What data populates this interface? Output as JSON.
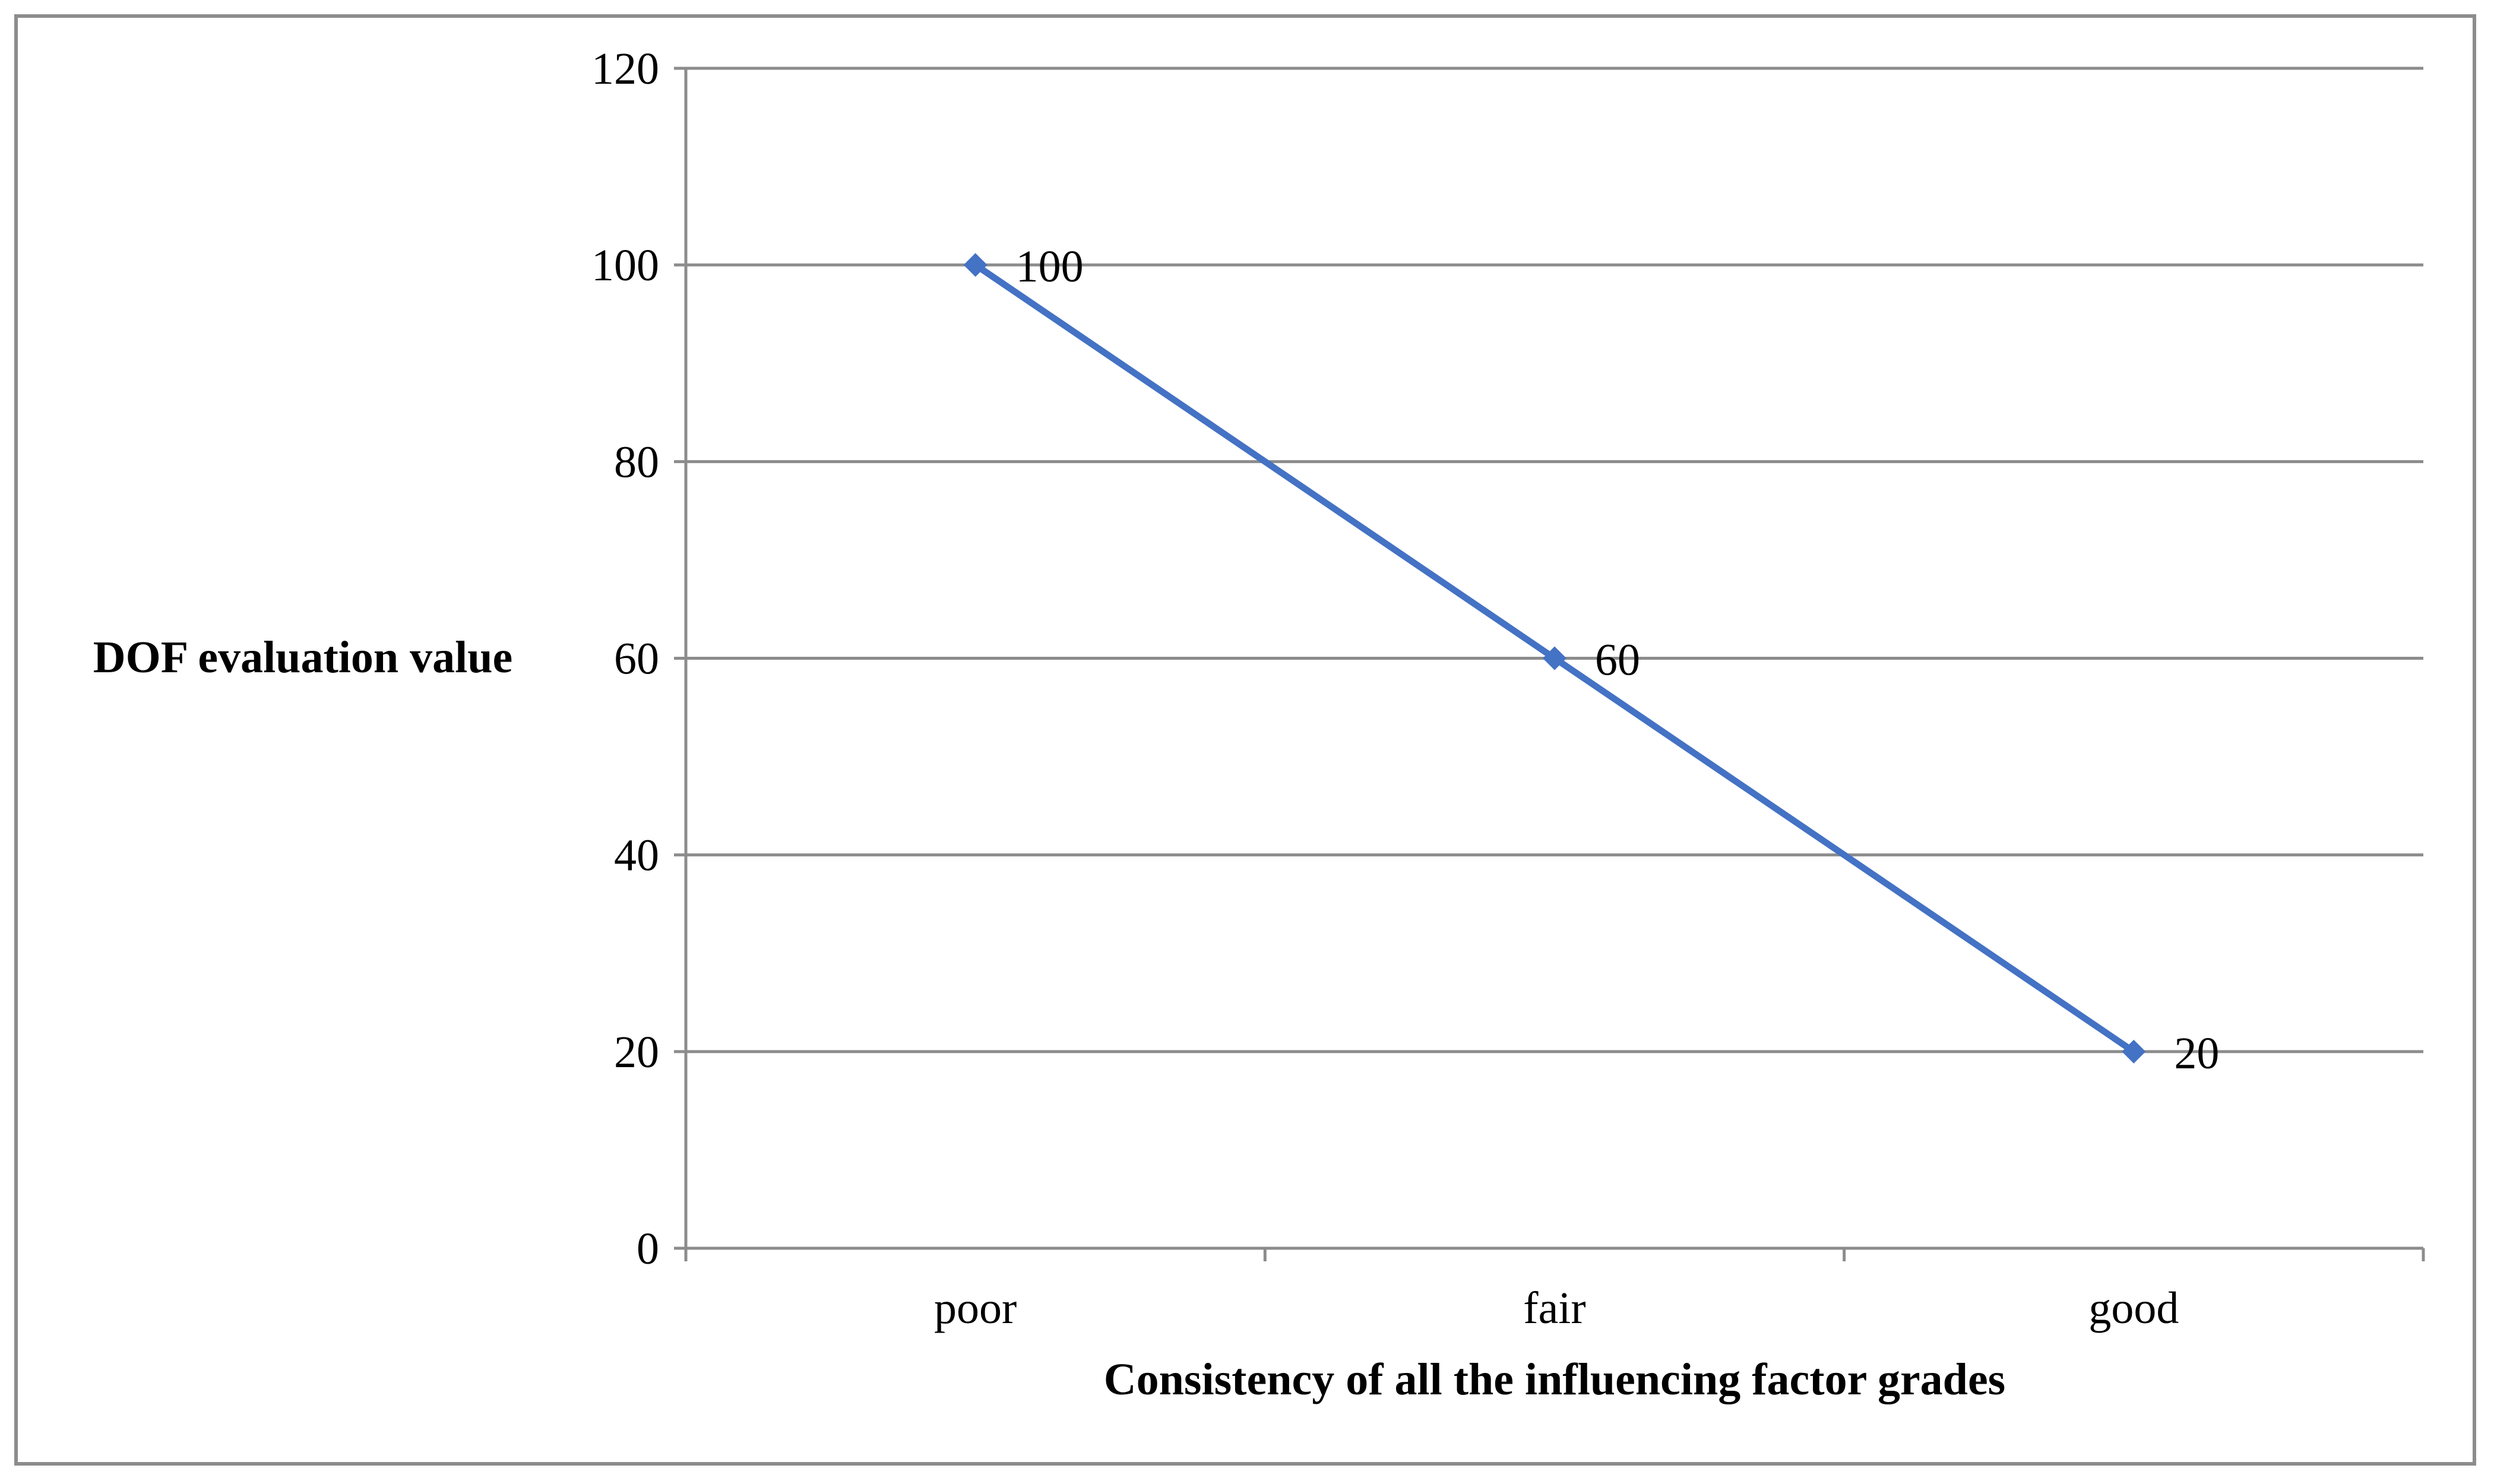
{
  "chart_data": {
    "type": "line",
    "title": "",
    "xlabel": "Consistency of all the influencing factor grades",
    "ylabel": "DOF evaluation value",
    "categories": [
      "poor",
      "fair",
      "good"
    ],
    "series": [
      {
        "values": [
          100,
          60,
          20
        ],
        "data_labels": [
          "100",
          "60",
          "20"
        ],
        "color": "#4472C4",
        "marker": "diamond"
      }
    ],
    "ylim": [
      0,
      120
    ],
    "yticks": [
      0,
      20,
      40,
      60,
      80,
      100,
      120
    ],
    "ytick_labels": [
      "0",
      "20",
      "40",
      "60",
      "80",
      "100",
      "120"
    ],
    "grid": "horizontal",
    "legend": "none"
  }
}
